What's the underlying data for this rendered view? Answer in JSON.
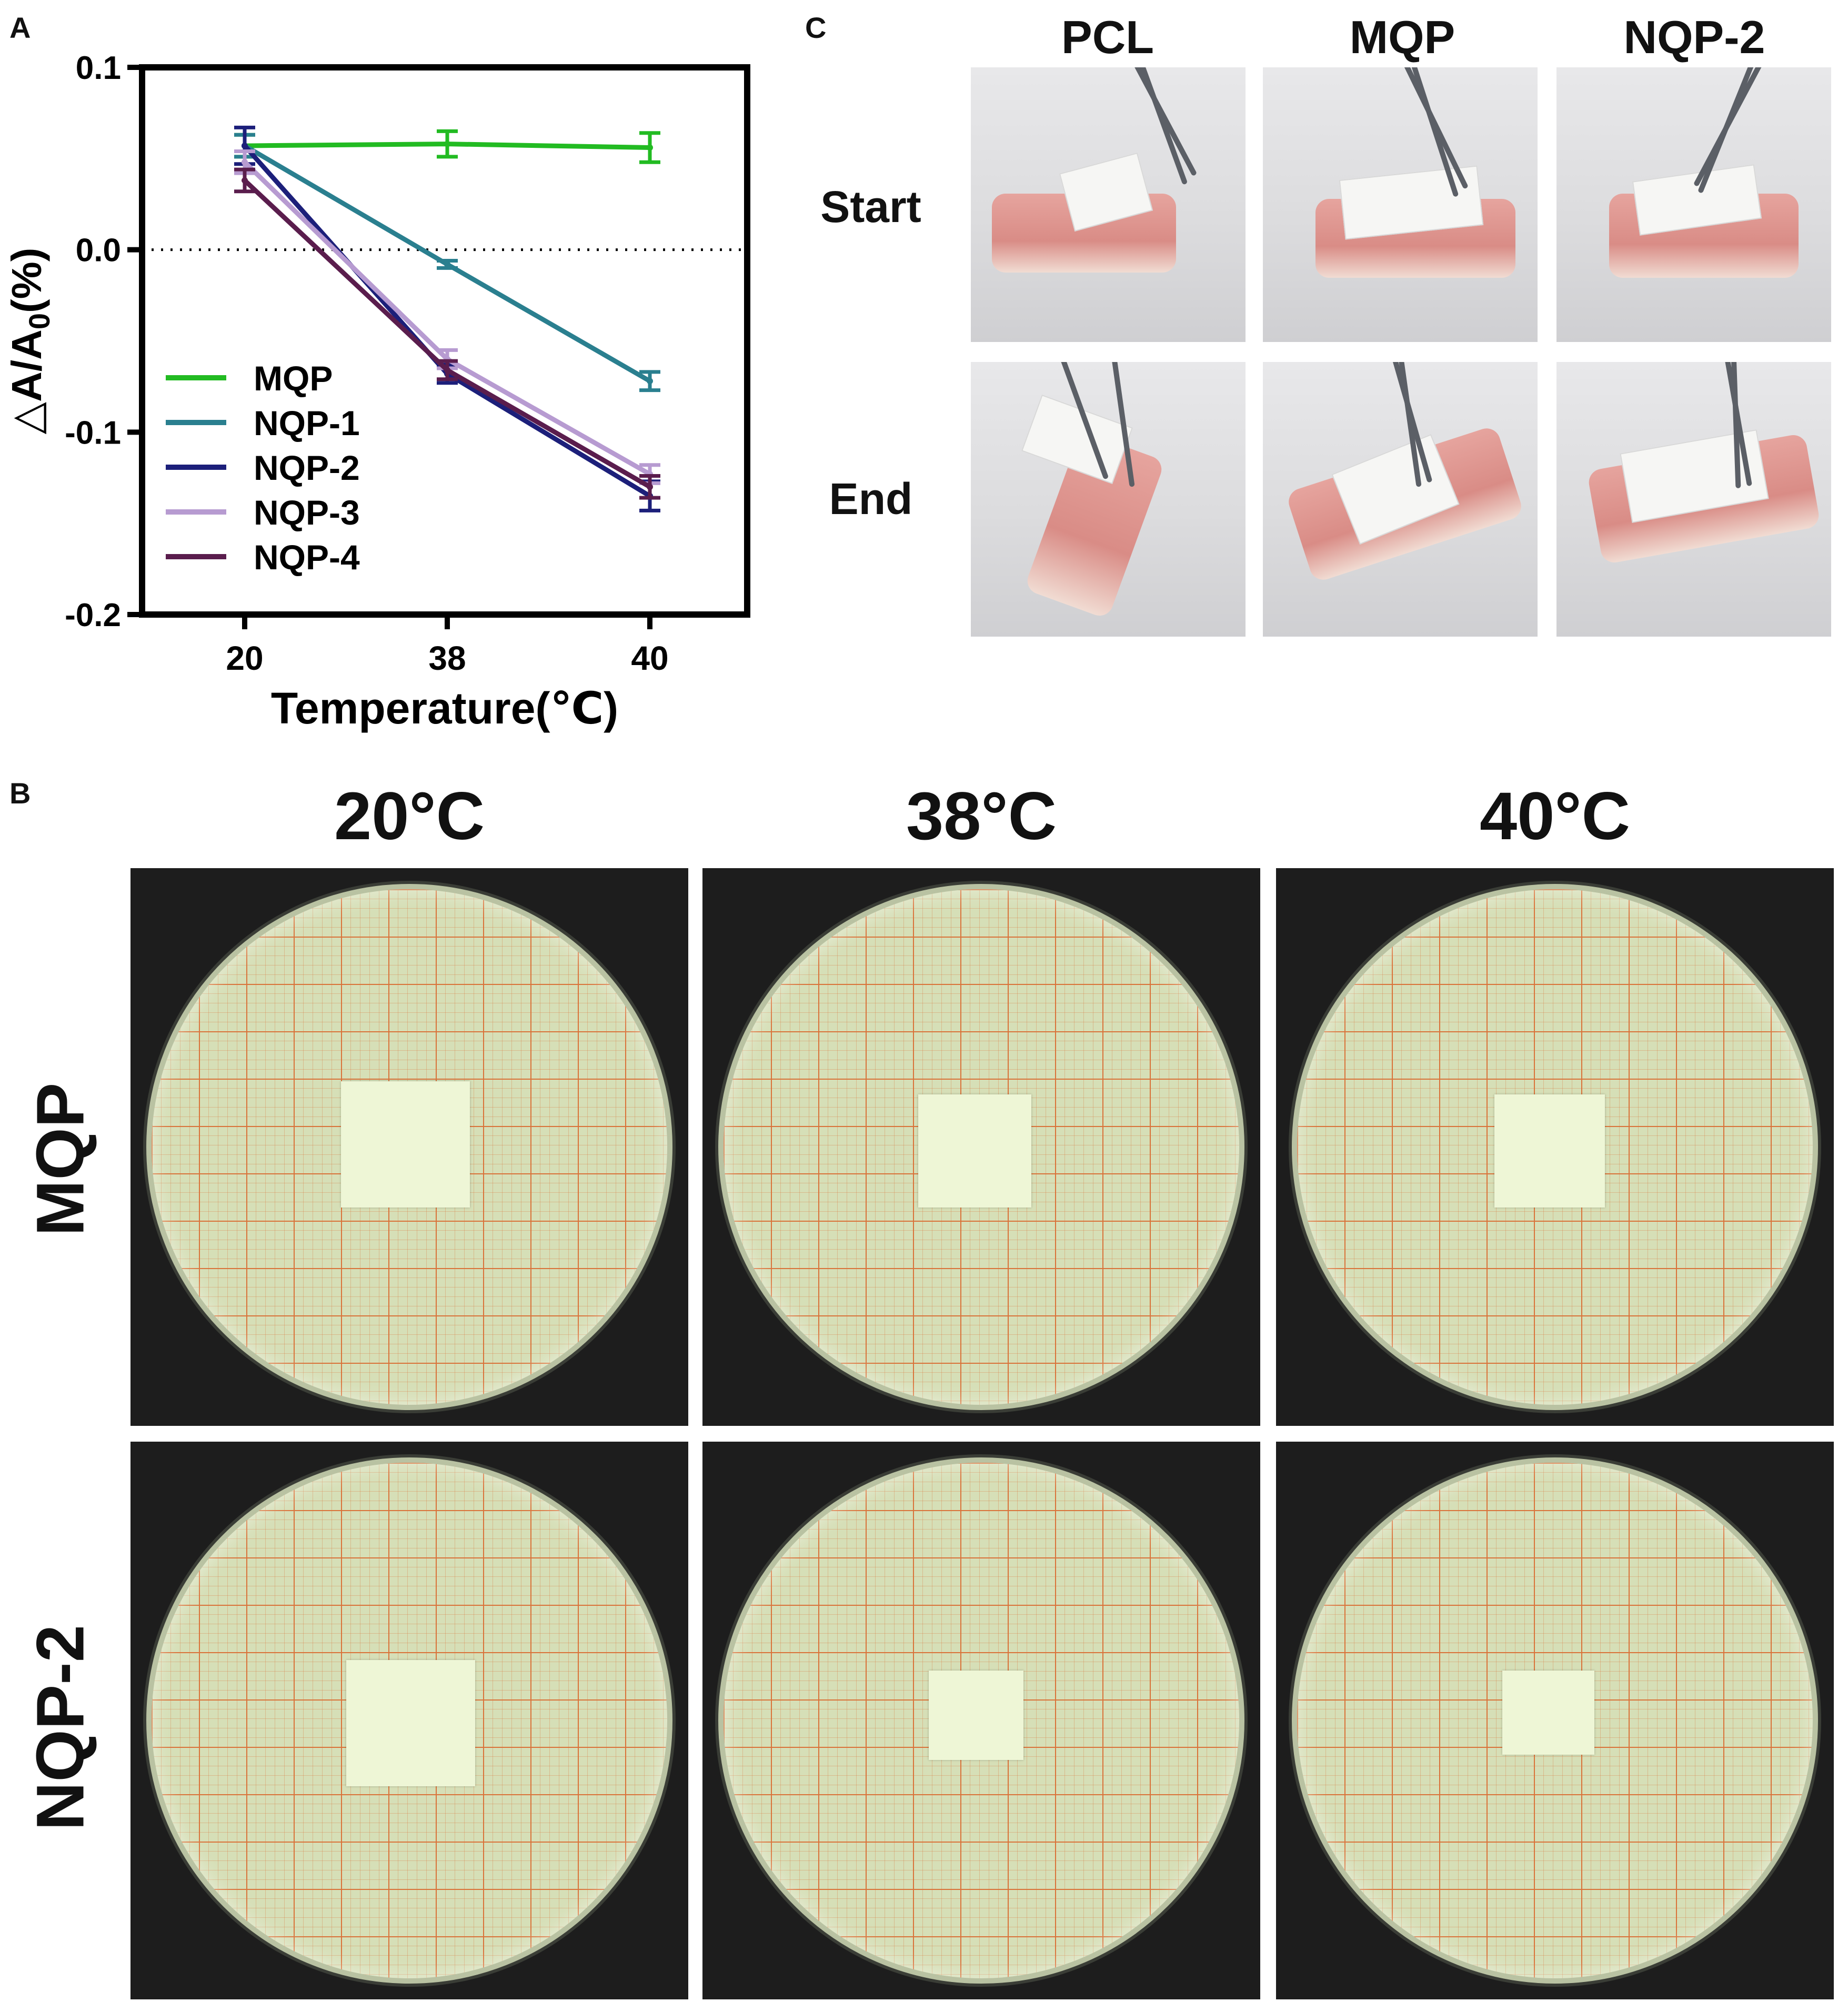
{
  "panels": {
    "a": "A",
    "b": "B",
    "c": "C"
  },
  "chart_data": {
    "type": "line",
    "x": [
      "20",
      "38",
      "40"
    ],
    "xlabel": "Temperature(℃)",
    "ylabel": "△A/A",
    "ylabel_sub": "0",
    "ylabel_suffix": "(%)",
    "ylim": [
      -0.2,
      0.1
    ],
    "yticks": [
      "0.1",
      "0.0",
      "-0.1",
      "-0.2"
    ],
    "reference_line": 0.0,
    "grid": false,
    "legend_position": "lower-left",
    "series": [
      {
        "name": "MQP",
        "color": "#22bb22",
        "values": [
          0.057,
          0.058,
          0.056
        ],
        "errors": [
          0.006,
          0.007,
          0.008
        ]
      },
      {
        "name": "NQP-1",
        "color": "#2a7f8f",
        "values": [
          0.057,
          -0.008,
          -0.072
        ],
        "errors": [
          0.006,
          0.002,
          0.005
        ]
      },
      {
        "name": "NQP-2",
        "color": "#1c1f7a",
        "values": [
          0.057,
          -0.068,
          -0.135
        ],
        "errors": [
          0.01,
          0.005,
          0.008
        ]
      },
      {
        "name": "NQP-3",
        "color": "#b79bd1",
        "values": [
          0.048,
          -0.06,
          -0.123
        ],
        "errors": [
          0.006,
          0.005,
          0.005
        ]
      },
      {
        "name": "NQP-4",
        "color": "#5a1d4d",
        "values": [
          0.038,
          -0.066,
          -0.13
        ],
        "errors": [
          0.006,
          0.005,
          0.006
        ]
      }
    ]
  },
  "panel_c": {
    "columns": [
      "PCL",
      "MQP",
      "NQP-2"
    ],
    "rows": [
      "Start",
      "End"
    ]
  },
  "panel_b": {
    "columns": [
      "20°C",
      "38°C",
      "40°C"
    ],
    "rows": [
      "MQP",
      "NQP-2"
    ]
  }
}
